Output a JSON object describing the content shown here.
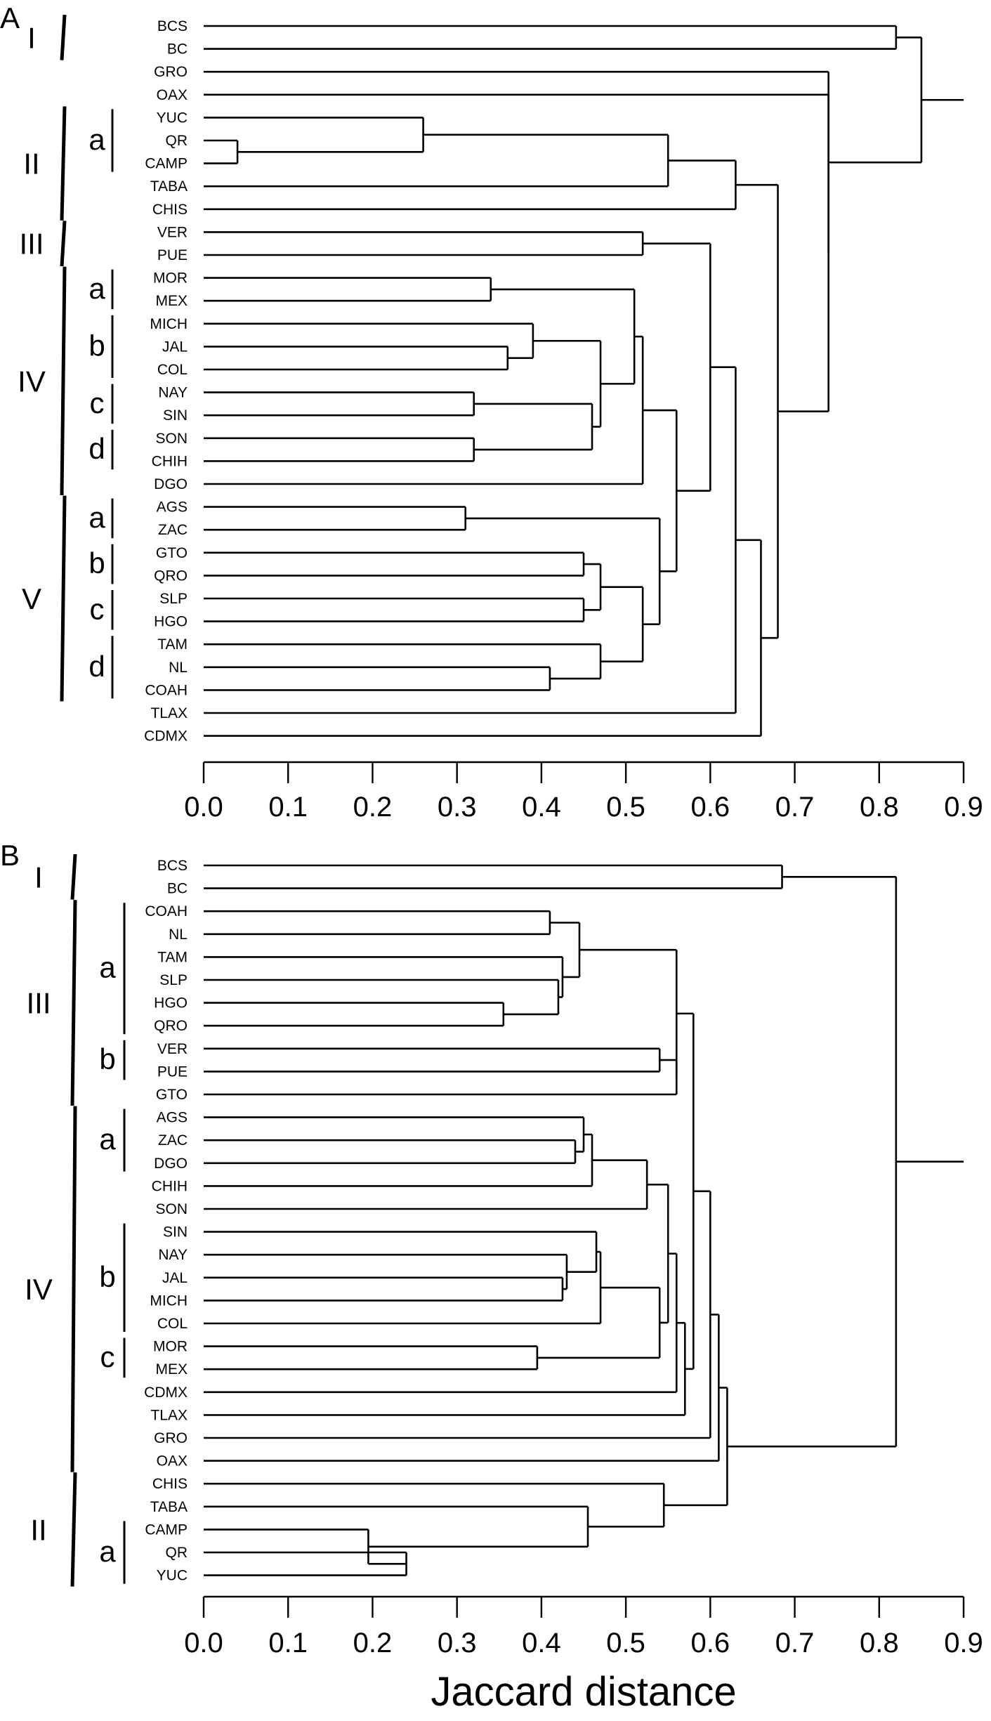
{
  "chart_data": [
    {
      "type": "dendrogram",
      "panel_label": "A",
      "axis": {
        "min": 0.0,
        "max": 0.9,
        "ticks": [
          "0.0",
          "0.1",
          "0.2",
          "0.3",
          "0.4",
          "0.5",
          "0.6",
          "0.7",
          "0.8",
          "0.9"
        ]
      },
      "leaves": [
        "BCS",
        "BC",
        "GRO",
        "OAX",
        "YUC",
        "QR",
        "CAMP",
        "TABA",
        "CHIS",
        "VER",
        "PUE",
        "MOR",
        "MEX",
        "MICH",
        "JAL",
        "COL",
        "NAY",
        "SIN",
        "SON",
        "CHIH",
        "DGO",
        "AGS",
        "ZAC",
        "GTO",
        "QRO",
        "SLP",
        "HGO",
        "TAM",
        "NL",
        "COAH",
        "TLAX",
        "CDMX"
      ],
      "merges": [
        {
          "id": "a1",
          "children": [
            "QR",
            "CAMP"
          ],
          "height": 0.04
        },
        {
          "id": "a2",
          "children": [
            "YUC",
            "a1"
          ],
          "height": 0.26
        },
        {
          "id": "a3",
          "children": [
            "a2",
            "TABA"
          ],
          "height": 0.55
        },
        {
          "id": "a4",
          "children": [
            "a3",
            "CHIS"
          ],
          "height": 0.63
        },
        {
          "id": "a5",
          "children": [
            "VER",
            "PUE"
          ],
          "height": 0.52
        },
        {
          "id": "a6",
          "children": [
            "MOR",
            "MEX"
          ],
          "height": 0.34
        },
        {
          "id": "a7",
          "children": [
            "JAL",
            "COL"
          ],
          "height": 0.36
        },
        {
          "id": "a8",
          "children": [
            "MICH",
            "a7"
          ],
          "height": 0.39
        },
        {
          "id": "a9",
          "children": [
            "NAY",
            "SIN"
          ],
          "height": 0.32
        },
        {
          "id": "a10",
          "children": [
            "SON",
            "CHIH"
          ],
          "height": 0.32
        },
        {
          "id": "a11",
          "children": [
            "a9",
            "a10"
          ],
          "height": 0.46
        },
        {
          "id": "a12",
          "children": [
            "a8",
            "a11"
          ],
          "height": 0.47
        },
        {
          "id": "a13",
          "children": [
            "a6",
            "a12"
          ],
          "height": 0.51
        },
        {
          "id": "a14",
          "children": [
            "a13",
            "DGO"
          ],
          "height": 0.52
        },
        {
          "id": "a15",
          "children": [
            "AGS",
            "ZAC"
          ],
          "height": 0.31
        },
        {
          "id": "a16",
          "children": [
            "GTO",
            "QRO"
          ],
          "height": 0.45
        },
        {
          "id": "a17",
          "children": [
            "SLP",
            "HGO"
          ],
          "height": 0.45
        },
        {
          "id": "a18",
          "children": [
            "a16",
            "a17"
          ],
          "height": 0.47
        },
        {
          "id": "a19",
          "children": [
            "NL",
            "COAH"
          ],
          "height": 0.41
        },
        {
          "id": "a20",
          "children": [
            "TAM",
            "a19"
          ],
          "height": 0.47
        },
        {
          "id": "a21",
          "children": [
            "a18",
            "a20"
          ],
          "height": 0.52
        },
        {
          "id": "a22",
          "children": [
            "a15",
            "a21"
          ],
          "height": 0.54
        },
        {
          "id": "a23",
          "children": [
            "a14",
            "a22"
          ],
          "height": 0.56
        },
        {
          "id": "a24",
          "children": [
            "a5",
            "a23"
          ],
          "height": 0.6
        },
        {
          "id": "a25",
          "children": [
            "a24",
            "TLAX"
          ],
          "height": 0.63
        },
        {
          "id": "a26",
          "children": [
            "a25",
            "CDMX"
          ],
          "height": 0.66
        },
        {
          "id": "a27",
          "children": [
            "a4",
            "a26"
          ],
          "height": 0.68
        },
        {
          "id": "a28",
          "children": [
            "OAX",
            "a27"
          ],
          "height": 0.74
        },
        {
          "id": "a29",
          "children": [
            "GRO",
            "a28"
          ],
          "height": 0.74
        },
        {
          "id": "a30",
          "children": [
            "BCS",
            "BC"
          ],
          "height": 0.82
        },
        {
          "id": "a31",
          "children": [
            "a30",
            "a29"
          ],
          "height": 0.85
        }
      ],
      "root_extent": 0.9,
      "groups": [
        {
          "label": "I",
          "from": "BCS",
          "to": "BC",
          "subgroups": []
        },
        {
          "label": "II",
          "from": "YUC",
          "to": "CHIS",
          "subgroups": [
            {
              "label": "a",
              "from": "YUC",
              "to": "CAMP"
            }
          ]
        },
        {
          "label": "III",
          "from": "VER",
          "to": "PUE",
          "subgroups": []
        },
        {
          "label": "IV",
          "from": "MOR",
          "to": "DGO",
          "subgroups": [
            {
              "label": "a",
              "from": "MOR",
              "to": "MEX"
            },
            {
              "label": "b",
              "from": "MICH",
              "to": "COL"
            },
            {
              "label": "c",
              "from": "NAY",
              "to": "SIN"
            },
            {
              "label": "d",
              "from": "SON",
              "to": "CHIH"
            }
          ]
        },
        {
          "label": "V",
          "from": "AGS",
          "to": "COAH",
          "subgroups": [
            {
              "label": "a",
              "from": "AGS",
              "to": "ZAC"
            },
            {
              "label": "b",
              "from": "GTO",
              "to": "QRO"
            },
            {
              "label": "c",
              "from": "SLP",
              "to": "HGO"
            },
            {
              "label": "d",
              "from": "TAM",
              "to": "COAH"
            }
          ]
        }
      ]
    },
    {
      "type": "dendrogram",
      "panel_label": "B",
      "axis": {
        "min": 0.0,
        "max": 0.9,
        "ticks": [
          "0.0",
          "0.1",
          "0.2",
          "0.3",
          "0.4",
          "0.5",
          "0.6",
          "0.7",
          "0.8",
          "0.9"
        ],
        "title": "Jaccard distance"
      },
      "leaves": [
        "BCS",
        "BC",
        "COAH",
        "NL",
        "TAM",
        "SLP",
        "HGO",
        "QRO",
        "VER",
        "PUE",
        "GTO",
        "AGS",
        "ZAC",
        "DGO",
        "CHIH",
        "SON",
        "SIN",
        "NAY",
        "JAL",
        "MICH",
        "COL",
        "MOR",
        "MEX",
        "CDMX",
        "TLAX",
        "GRO",
        "OAX",
        "CHIS",
        "TABA",
        "CAMP",
        "QR",
        "YUC"
      ],
      "merges": [
        {
          "id": "b1",
          "children": [
            "COAH",
            "NL"
          ],
          "height": 0.41
        },
        {
          "id": "b2",
          "children": [
            "HGO",
            "QRO"
          ],
          "height": 0.355
        },
        {
          "id": "b3",
          "children": [
            "SLP",
            "b2"
          ],
          "height": 0.42
        },
        {
          "id": "b4",
          "children": [
            "TAM",
            "b3"
          ],
          "height": 0.425
        },
        {
          "id": "b5",
          "children": [
            "b1",
            "b4"
          ],
          "height": 0.445
        },
        {
          "id": "b6",
          "children": [
            "VER",
            "PUE"
          ],
          "height": 0.54
        },
        {
          "id": "b7",
          "children": [
            "b6",
            "GTO"
          ],
          "height": 0.56
        },
        {
          "id": "b8",
          "children": [
            "b5",
            "b7"
          ],
          "height": 0.56
        },
        {
          "id": "b9",
          "children": [
            "ZAC",
            "DGO"
          ],
          "height": 0.44
        },
        {
          "id": "b10",
          "children": [
            "AGS",
            "b9"
          ],
          "height": 0.45
        },
        {
          "id": "b11",
          "children": [
            "b10",
            "CHIH"
          ],
          "height": 0.46
        },
        {
          "id": "b12",
          "children": [
            "b11",
            "SON"
          ],
          "height": 0.525
        },
        {
          "id": "b13",
          "children": [
            "JAL",
            "MICH"
          ],
          "height": 0.425
        },
        {
          "id": "b14",
          "children": [
            "NAY",
            "b13"
          ],
          "height": 0.43
        },
        {
          "id": "b15",
          "children": [
            "SIN",
            "b14"
          ],
          "height": 0.465
        },
        {
          "id": "b16",
          "children": [
            "b15",
            "COL"
          ],
          "height": 0.47
        },
        {
          "id": "b17",
          "children": [
            "MOR",
            "MEX"
          ],
          "height": 0.395
        },
        {
          "id": "b18",
          "children": [
            "b16",
            "b17"
          ],
          "height": 0.54
        },
        {
          "id": "b19",
          "children": [
            "b12",
            "b18"
          ],
          "height": 0.55
        },
        {
          "id": "b20",
          "children": [
            "b19",
            "CDMX"
          ],
          "height": 0.56
        },
        {
          "id": "b21",
          "children": [
            "b20",
            "TLAX"
          ],
          "height": 0.57
        },
        {
          "id": "b22",
          "children": [
            "b8",
            "b21"
          ],
          "height": 0.58
        },
        {
          "id": "b23",
          "children": [
            "b22",
            "GRO"
          ],
          "height": 0.6
        },
        {
          "id": "b24",
          "children": [
            "b23",
            "OAX"
          ],
          "height": 0.61
        },
        {
          "id": "b25",
          "children": [
            "QR",
            "YUC"
          ],
          "height": 0.24
        },
        {
          "id": "b26",
          "children": [
            "CAMP",
            "b25"
          ],
          "height": 0.195
        },
        {
          "id": "b27",
          "children": [
            "TABA",
            "b26"
          ],
          "height": 0.455
        },
        {
          "id": "b28",
          "children": [
            "CHIS",
            "b27"
          ],
          "height": 0.545
        },
        {
          "id": "b29",
          "children": [
            "b24",
            "b28"
          ],
          "height": 0.62
        },
        {
          "id": "b30",
          "children": [
            "BCS",
            "BC"
          ],
          "height": 0.685
        },
        {
          "id": "b31",
          "children": [
            "b30",
            "b29"
          ],
          "height": 0.82
        }
      ],
      "root_extent": 0.9,
      "groups": [
        {
          "label": "I",
          "from": "BCS",
          "to": "BC",
          "subgroups": []
        },
        {
          "label": "III",
          "from": "COAH",
          "to": "GTO",
          "subgroups": [
            {
              "label": "a",
              "from": "COAH",
              "to": "QRO"
            },
            {
              "label": "b",
              "from": "VER",
              "to": "PUE"
            }
          ]
        },
        {
          "label": "IV",
          "from": "AGS",
          "to": "OAX",
          "subgroups": [
            {
              "label": "a",
              "from": "AGS",
              "to": "DGO"
            },
            {
              "label": "b",
              "from": "SIN",
              "to": "COL"
            },
            {
              "label": "c",
              "from": "MOR",
              "to": "MEX"
            }
          ]
        },
        {
          "label": "II",
          "from": "CHIS",
          "to": "YUC",
          "subgroups": [
            {
              "label": "a",
              "from": "CAMP",
              "to": "YUC"
            }
          ]
        }
      ]
    }
  ]
}
